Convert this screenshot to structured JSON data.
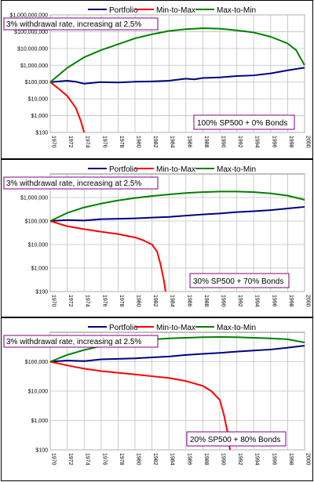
{
  "legend": [
    "Portfolio",
    "Min-to-Max",
    "Max-to-Min"
  ],
  "colors": {
    "Portfolio": "#000080",
    "Min-to-Max": "#ff0000",
    "Max-to-Min": "#008000",
    "box_border": "#800080",
    "grid": "#c0c0c0"
  },
  "chart_data": [
    {
      "type": "line",
      "title": "3% withdrawal rate, increasing at 2.5%",
      "annotation": "100% SP500 + 0% Bonds",
      "yscale": "log",
      "ylim": [
        100,
        1000000000
      ],
      "xlim": [
        1970,
        2000
      ],
      "yticks": [
        "$100",
        "$1,000",
        "$10,000",
        "$100,000",
        "$1,000,000",
        "$10,000,000",
        "$100,000,000",
        "$1,000,000,000"
      ],
      "xticks": [
        "1970",
        "1972",
        "1974",
        "1976",
        "1978",
        "1980",
        "1982",
        "1984",
        "1986",
        "1988",
        "1990",
        "1992",
        "1994",
        "1996",
        "1998",
        "2000"
      ],
      "grid": true,
      "legend_position": "top",
      "series": [
        {
          "name": "Portfolio",
          "x": [
            1970,
            1972,
            1973,
            1974,
            1976,
            1978,
            1980,
            1982,
            1984,
            1986,
            1987,
            1988,
            1990,
            1992,
            1994,
            1996,
            1998,
            2000
          ],
          "y": [
            100000,
            120000,
            105000,
            80000,
            100000,
            95000,
            105000,
            110000,
            120000,
            160000,
            145000,
            175000,
            190000,
            230000,
            250000,
            330000,
            500000,
            720000
          ]
        },
        {
          "name": "Min-to-Max",
          "x": [
            1970,
            1971,
            1972,
            1973,
            1973.6,
            1973.9,
            1974
          ],
          "y": [
            100000,
            40000,
            15000,
            3000,
            500,
            150,
            100
          ]
        },
        {
          "name": "Max-to-Min",
          "x": [
            1970,
            1972,
            1974,
            1976,
            1978,
            1980,
            1982,
            1984,
            1986,
            1988,
            1990,
            1992,
            1994,
            1996,
            1998,
            1999,
            2000
          ],
          "y": [
            100000,
            700000,
            3000000,
            8000000,
            18000000,
            40000000,
            70000000,
            110000000,
            140000000,
            160000000,
            150000000,
            120000000,
            90000000,
            50000000,
            20000000,
            8000000,
            1000000
          ]
        }
      ]
    },
    {
      "type": "line",
      "title": "3% withdrawal rate, increasing at 2.5%",
      "annotation": "30% SP500 + 70% Bonds",
      "yscale": "log",
      "ylim": [
        100,
        10000000
      ],
      "xlim": [
        1970,
        2000
      ],
      "yticks": [
        "$100",
        "$1,000",
        "$10,000",
        "$100,000",
        "$1,000,000"
      ],
      "xticks": [
        "1970",
        "1972",
        "1974",
        "1976",
        "1978",
        "1980",
        "1982",
        "1984",
        "1986",
        "1988",
        "1990",
        "1992",
        "1994",
        "1996",
        "1998",
        "2000"
      ],
      "grid": true,
      "legend_position": "top",
      "series": [
        {
          "name": "Portfolio",
          "x": [
            1970,
            1972,
            1974,
            1976,
            1978,
            1980,
            1982,
            1984,
            1986,
            1988,
            1990,
            1992,
            1994,
            1996,
            1998,
            2000
          ],
          "y": [
            100000,
            110000,
            105000,
            120000,
            125000,
            130000,
            140000,
            150000,
            170000,
            190000,
            210000,
            240000,
            260000,
            290000,
            340000,
            400000
          ]
        },
        {
          "name": "Min-to-Max",
          "x": [
            1970,
            1972,
            1974,
            1976,
            1978,
            1980,
            1981,
            1982,
            1982.6,
            1983,
            1983.4,
            1983.6
          ],
          "y": [
            100000,
            60000,
            45000,
            35000,
            28000,
            20000,
            15000,
            10000,
            5000,
            1500,
            300,
            100
          ]
        },
        {
          "name": "Max-to-Min",
          "x": [
            1970,
            1972,
            1974,
            1976,
            1978,
            1980,
            1982,
            1984,
            1986,
            1988,
            1990,
            1992,
            1994,
            1996,
            1998,
            2000
          ],
          "y": [
            100000,
            220000,
            380000,
            550000,
            750000,
            950000,
            1150000,
            1350000,
            1550000,
            1700000,
            1800000,
            1800000,
            1700000,
            1500000,
            1200000,
            800000
          ]
        }
      ]
    },
    {
      "type": "line",
      "title": "3% withdrawal rate, increasing at 2.5%",
      "annotation": "20% SP500 + 80% Bonds",
      "yscale": "log",
      "ylim": [
        100,
        1000000
      ],
      "xlim": [
        1970,
        2000
      ],
      "yticks": [
        "$100",
        "$1,000",
        "$10,000",
        "$100,000"
      ],
      "xticks": [
        "1970",
        "1972",
        "1974",
        "1976",
        "1978",
        "1980",
        "1982",
        "1984",
        "1986",
        "1988",
        "1990",
        "1992",
        "1994",
        "1996",
        "1998",
        "2000"
      ],
      "grid": true,
      "legend_position": "top",
      "series": [
        {
          "name": "Portfolio",
          "x": [
            1970,
            1972,
            1974,
            1976,
            1978,
            1980,
            1982,
            1984,
            1986,
            1988,
            1990,
            1992,
            1994,
            1996,
            1998,
            2000
          ],
          "y": [
            100000,
            110000,
            105000,
            120000,
            125000,
            130000,
            140000,
            150000,
            170000,
            185000,
            200000,
            220000,
            240000,
            260000,
            300000,
            350000
          ]
        },
        {
          "name": "Min-to-Max",
          "x": [
            1970,
            1972,
            1974,
            1976,
            1978,
            1980,
            1982,
            1984,
            1986,
            1988,
            1989,
            1990,
            1990.5,
            1991,
            1991.2
          ],
          "y": [
            100000,
            75000,
            58000,
            48000,
            42000,
            37000,
            32000,
            28000,
            22000,
            15000,
            10000,
            5000,
            1500,
            300,
            100
          ]
        },
        {
          "name": "Max-to-Min",
          "x": [
            1970,
            1972,
            1974,
            1976,
            1978,
            1980,
            1982,
            1984,
            1986,
            1988,
            1990,
            1992,
            1994,
            1996,
            1998,
            2000
          ],
          "y": [
            100000,
            170000,
            250000,
            340000,
            420000,
            500000,
            570000,
            620000,
            650000,
            680000,
            690000,
            680000,
            650000,
            620000,
            580000,
            450000
          ]
        }
      ]
    }
  ]
}
